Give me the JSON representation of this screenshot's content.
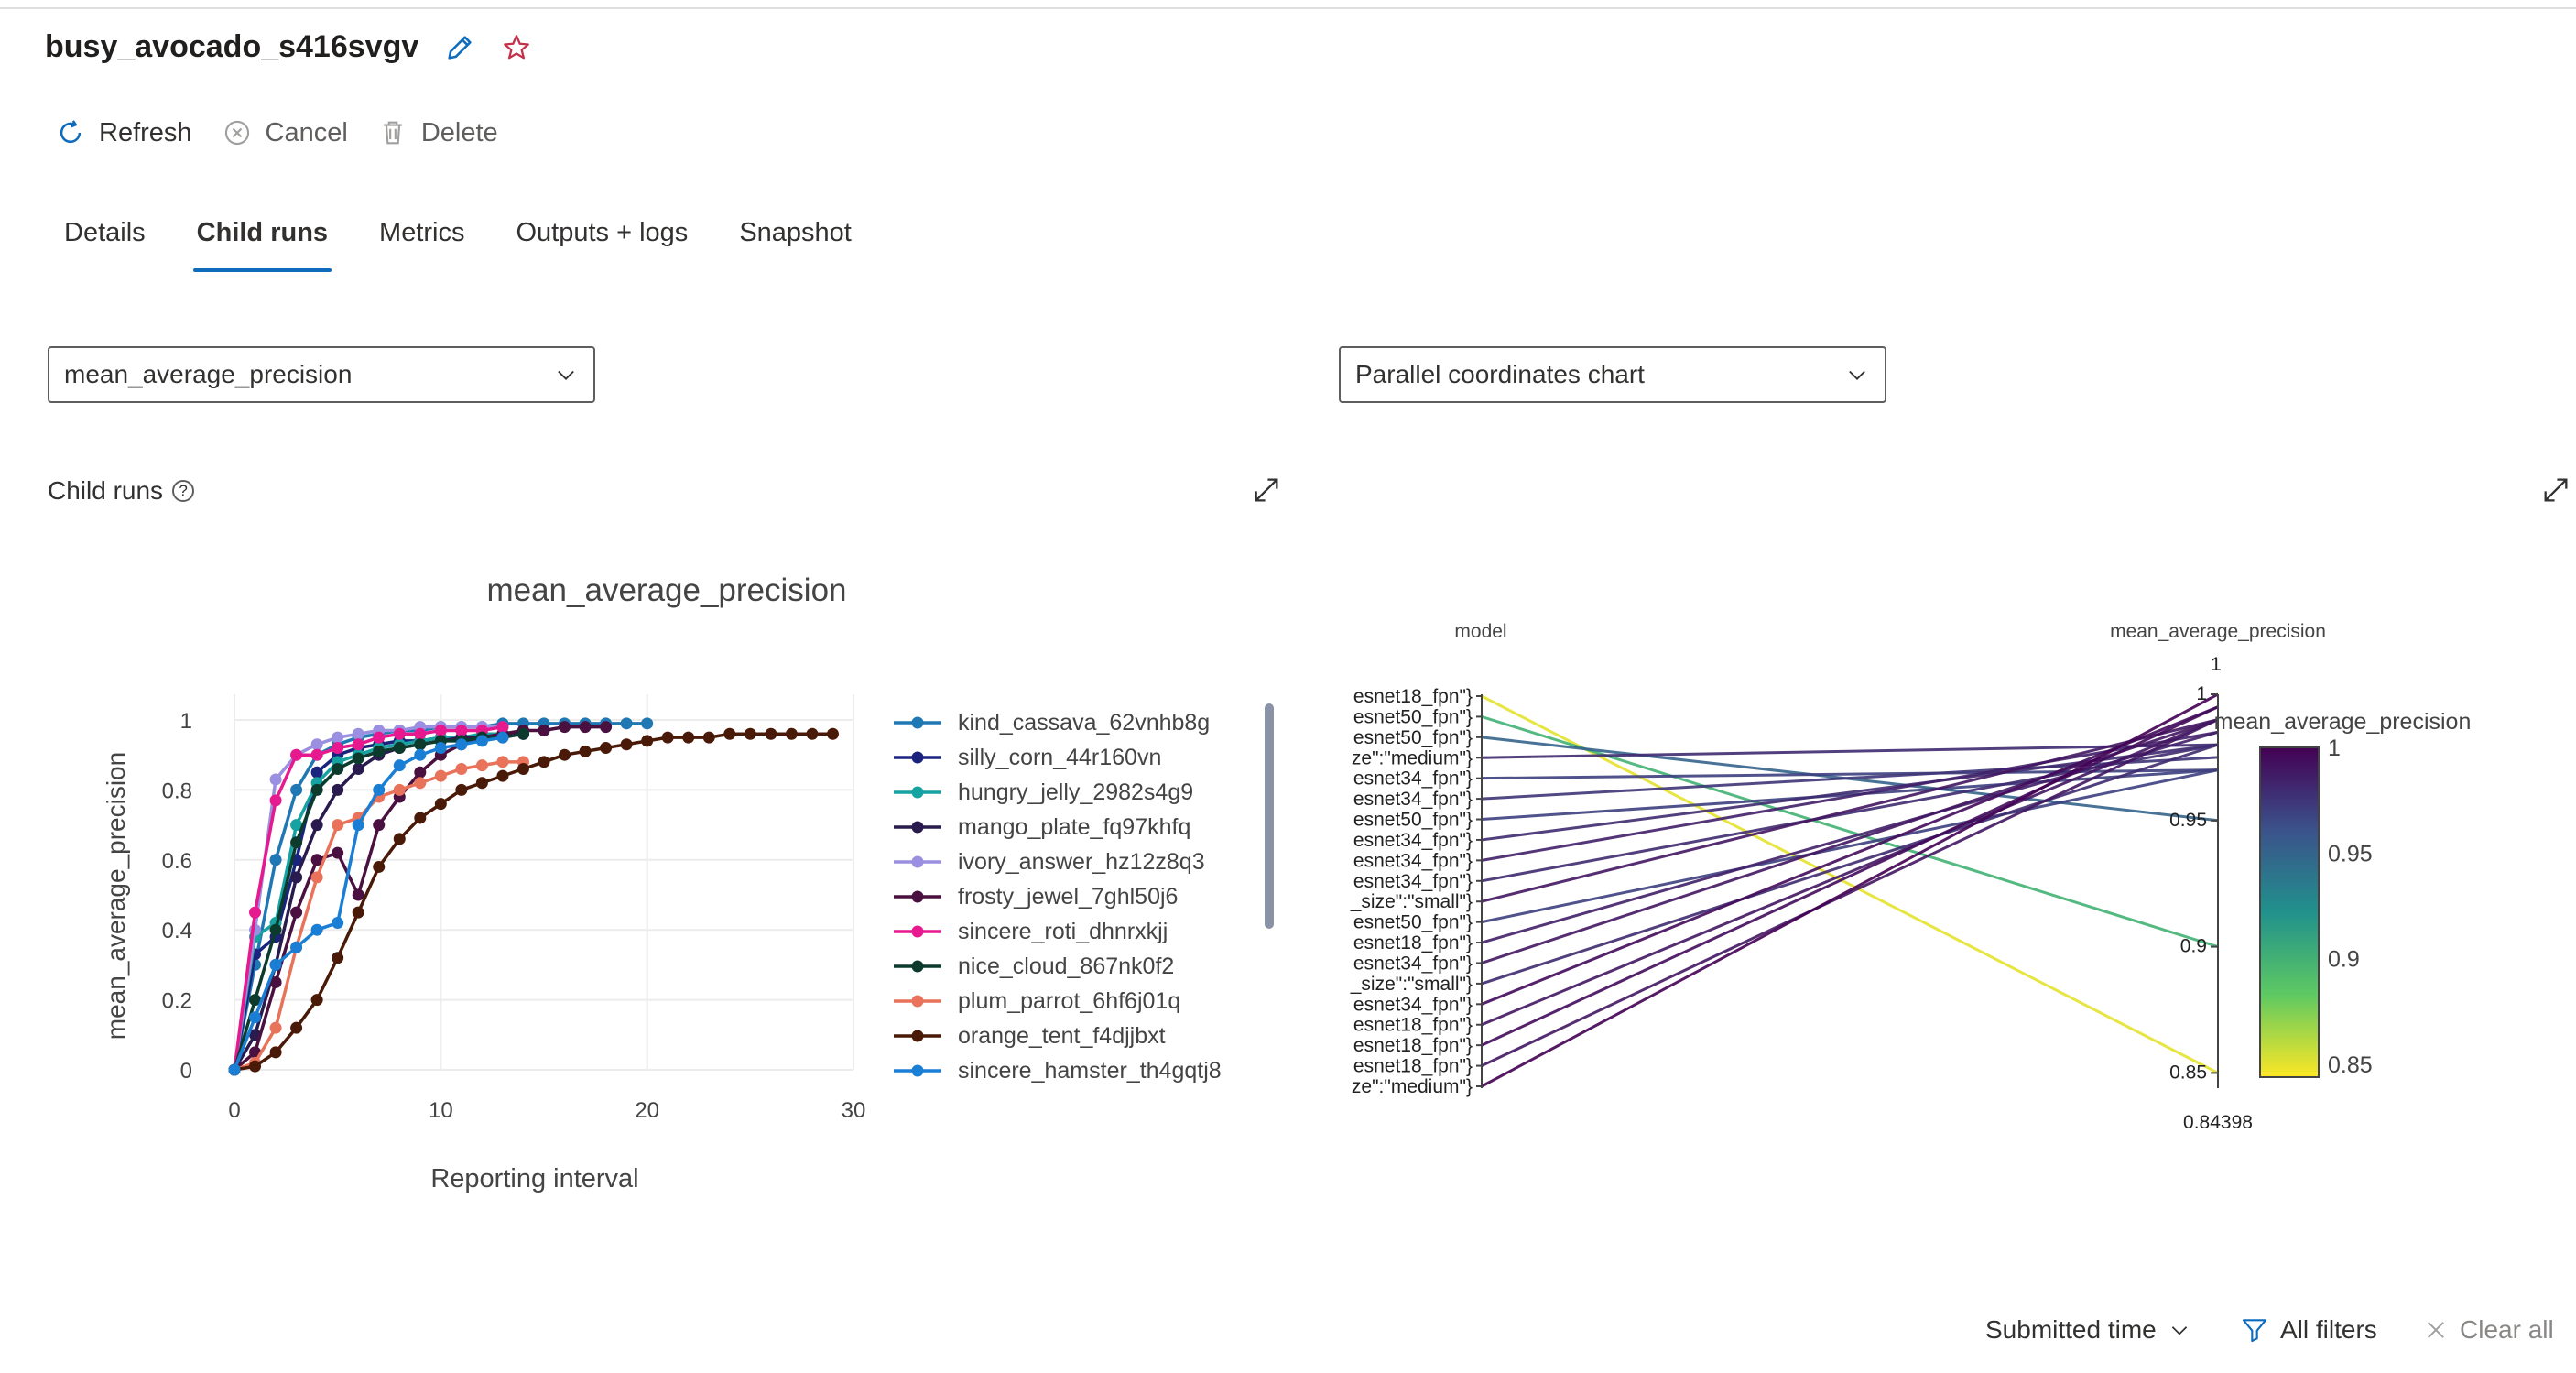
{
  "header": {
    "run_name": "busy_avocado_s416svgv"
  },
  "toolbar": {
    "refresh": "Refresh",
    "cancel": "Cancel",
    "delete": "Delete"
  },
  "tabs": [
    {
      "label": "Details"
    },
    {
      "label": "Child runs",
      "active": true
    },
    {
      "label": "Metrics"
    },
    {
      "label": "Outputs + logs"
    },
    {
      "label": "Snapshot"
    }
  ],
  "metric_dropdown": {
    "value": "mean_average_precision"
  },
  "chart_type_dropdown": {
    "value": "Parallel coordinates chart"
  },
  "section": {
    "label": "Child runs"
  },
  "legend": [
    {
      "name": "kind_cassava_62vnhb8g",
      "color": "#1f77b4"
    },
    {
      "name": "silly_corn_44r160vn",
      "color": "#1a237e"
    },
    {
      "name": "hungry_jelly_2982s4g9",
      "color": "#17a2a2"
    },
    {
      "name": "mango_plate_fq97khfq",
      "color": "#2a1b4e"
    },
    {
      "name": "ivory_answer_hz12z8q3",
      "color": "#9a8fe0"
    },
    {
      "name": "frosty_jewel_7ghl50j6",
      "color": "#4a1040"
    },
    {
      "name": "sincere_roti_dhnrxkjj",
      "color": "#e6198f"
    },
    {
      "name": "nice_cloud_867nk0f2",
      "color": "#0c3b2e"
    },
    {
      "name": "plum_parrot_6hf6j01q",
      "color": "#e8735a"
    },
    {
      "name": "orange_tent_f4djjbxt",
      "color": "#4a1a08"
    },
    {
      "name": "sincere_hamster_th4gqtj8",
      "color": "#1a7fd4"
    }
  ],
  "chart_data": [
    {
      "type": "line",
      "title": "mean_average_precision",
      "xlabel": "Reporting interval",
      "ylabel": "mean_average_precision",
      "xlim": [
        0,
        30
      ],
      "ylim": [
        0,
        1
      ],
      "xticks": [
        0,
        10,
        20,
        30
      ],
      "yticks": [
        0,
        0.2,
        0.4,
        0.6,
        0.8,
        1
      ],
      "grid": true,
      "legend_position": "right",
      "series": [
        {
          "name": "kind_cassava_62vnhb8g",
          "values": [
            0,
            0.3,
            0.6,
            0.8,
            0.9,
            0.93,
            0.95,
            0.96,
            0.97,
            0.97,
            0.98,
            0.98,
            0.98,
            0.99,
            0.99,
            0.99,
            0.99,
            0.99,
            0.99,
            0.99,
            0.99
          ]
        },
        {
          "name": "silly_corn_44r160vn",
          "values": [
            0,
            0.33,
            0.38,
            0.6,
            0.85,
            0.9,
            0.92,
            0.93,
            0.94,
            0.94,
            0.95,
            0.95,
            0.95,
            0.96,
            0.96
          ]
        },
        {
          "name": "hungry_jelly_2982s4g9",
          "values": [
            0,
            0.38,
            0.42,
            0.7,
            0.82,
            0.88,
            0.9,
            0.92,
            0.93,
            0.94,
            0.95,
            0.95,
            0.96,
            0.96,
            0.97
          ]
        },
        {
          "name": "mango_plate_fq97khfq",
          "values": [
            0,
            0.1,
            0.3,
            0.55,
            0.7,
            0.8,
            0.86,
            0.9,
            0.92,
            0.93,
            0.94,
            0.95,
            0.95,
            0.96,
            0.96
          ]
        },
        {
          "name": "ivory_answer_hz12z8q3",
          "values": [
            0,
            0.4,
            0.83,
            0.9,
            0.93,
            0.95,
            0.96,
            0.97,
            0.97,
            0.98,
            0.98,
            0.98,
            0.98,
            0.98
          ]
        },
        {
          "name": "frosty_jewel_7ghl50j6",
          "values": [
            0,
            0.05,
            0.25,
            0.45,
            0.6,
            0.62,
            0.5,
            0.7,
            0.78,
            0.85,
            0.9,
            0.93,
            0.95,
            0.96,
            0.97,
            0.97,
            0.98,
            0.98,
            0.98
          ]
        },
        {
          "name": "sincere_roti_dhnrxkjj",
          "values": [
            0,
            0.45,
            0.77,
            0.9,
            0.9,
            0.92,
            0.93,
            0.95,
            0.96,
            0.96,
            0.97,
            0.97,
            0.97,
            0.98
          ]
        },
        {
          "name": "nice_cloud_867nk0f2",
          "values": [
            0,
            0.2,
            0.4,
            0.65,
            0.8,
            0.86,
            0.89,
            0.91,
            0.92,
            0.93,
            0.94,
            0.94,
            0.95,
            0.95,
            0.96
          ]
        },
        {
          "name": "plum_parrot_6hf6j01q",
          "values": [
            0,
            0.02,
            0.12,
            0.35,
            0.55,
            0.7,
            0.72,
            0.78,
            0.8,
            0.82,
            0.84,
            0.86,
            0.87,
            0.88,
            0.88
          ]
        },
        {
          "name": "orange_tent_f4djjbxt",
          "values": [
            0,
            0.01,
            0.05,
            0.12,
            0.2,
            0.32,
            0.45,
            0.58,
            0.66,
            0.72,
            0.76,
            0.8,
            0.82,
            0.84,
            0.86,
            0.88,
            0.9,
            0.91,
            0.92,
            0.93,
            0.94,
            0.95,
            0.95,
            0.95,
            0.96,
            0.96,
            0.96,
            0.96,
            0.96,
            0.96
          ]
        },
        {
          "name": "sincere_hamster_th4gqtj8",
          "values": [
            0,
            0.15,
            0.3,
            0.35,
            0.4,
            0.42,
            0.7,
            0.8,
            0.87,
            0.9,
            0.92,
            0.93,
            0.94,
            0.95
          ]
        }
      ]
    },
    {
      "type": "parallel-coordinates",
      "axes": [
        "model",
        "mean_average_precision"
      ],
      "model_tick_labels": [
        "esnet18_fpn\"}",
        "esnet50_fpn\"}",
        "esnet50_fpn\"}",
        "ze\":\"medium\"}",
        "esnet34_fpn\"}",
        "esnet34_fpn\"}",
        "esnet50_fpn\"}",
        "esnet34_fpn\"}",
        "esnet34_fpn\"}",
        "esnet34_fpn\"}",
        "_size\":\"small\"}",
        "esnet50_fpn\"}",
        "esnet18_fpn\"}",
        "esnet34_fpn\"}",
        "_size\":\"small\"}",
        "esnet34_fpn\"}",
        "esnet18_fpn\"}",
        "esnet18_fpn\"}",
        "esnet18_fpn\"}",
        "ze\":\"medium\"}"
      ],
      "map_ticks": [
        "1",
        "1",
        "0.95",
        "0.9",
        "0.85",
        "0.84398"
      ],
      "map_range": [
        0.84398,
        1
      ],
      "colorbar": {
        "title": "mean_average_precision",
        "ticks": [
          "1",
          "0.95",
          "0.9",
          "0.85"
        ]
      },
      "lines_map": [
        0.85,
        0.9,
        0.95,
        0.98,
        0.97,
        0.975,
        0.97,
        0.98,
        0.985,
        0.98,
        0.99,
        0.97,
        0.985,
        0.99,
        0.98,
        0.995,
        0.99,
        0.995,
        0.99,
        1.0
      ]
    }
  ],
  "filter_bar": {
    "submitted_time": "Submitted time",
    "all_filters": "All filters",
    "clear_all": "Clear all"
  }
}
